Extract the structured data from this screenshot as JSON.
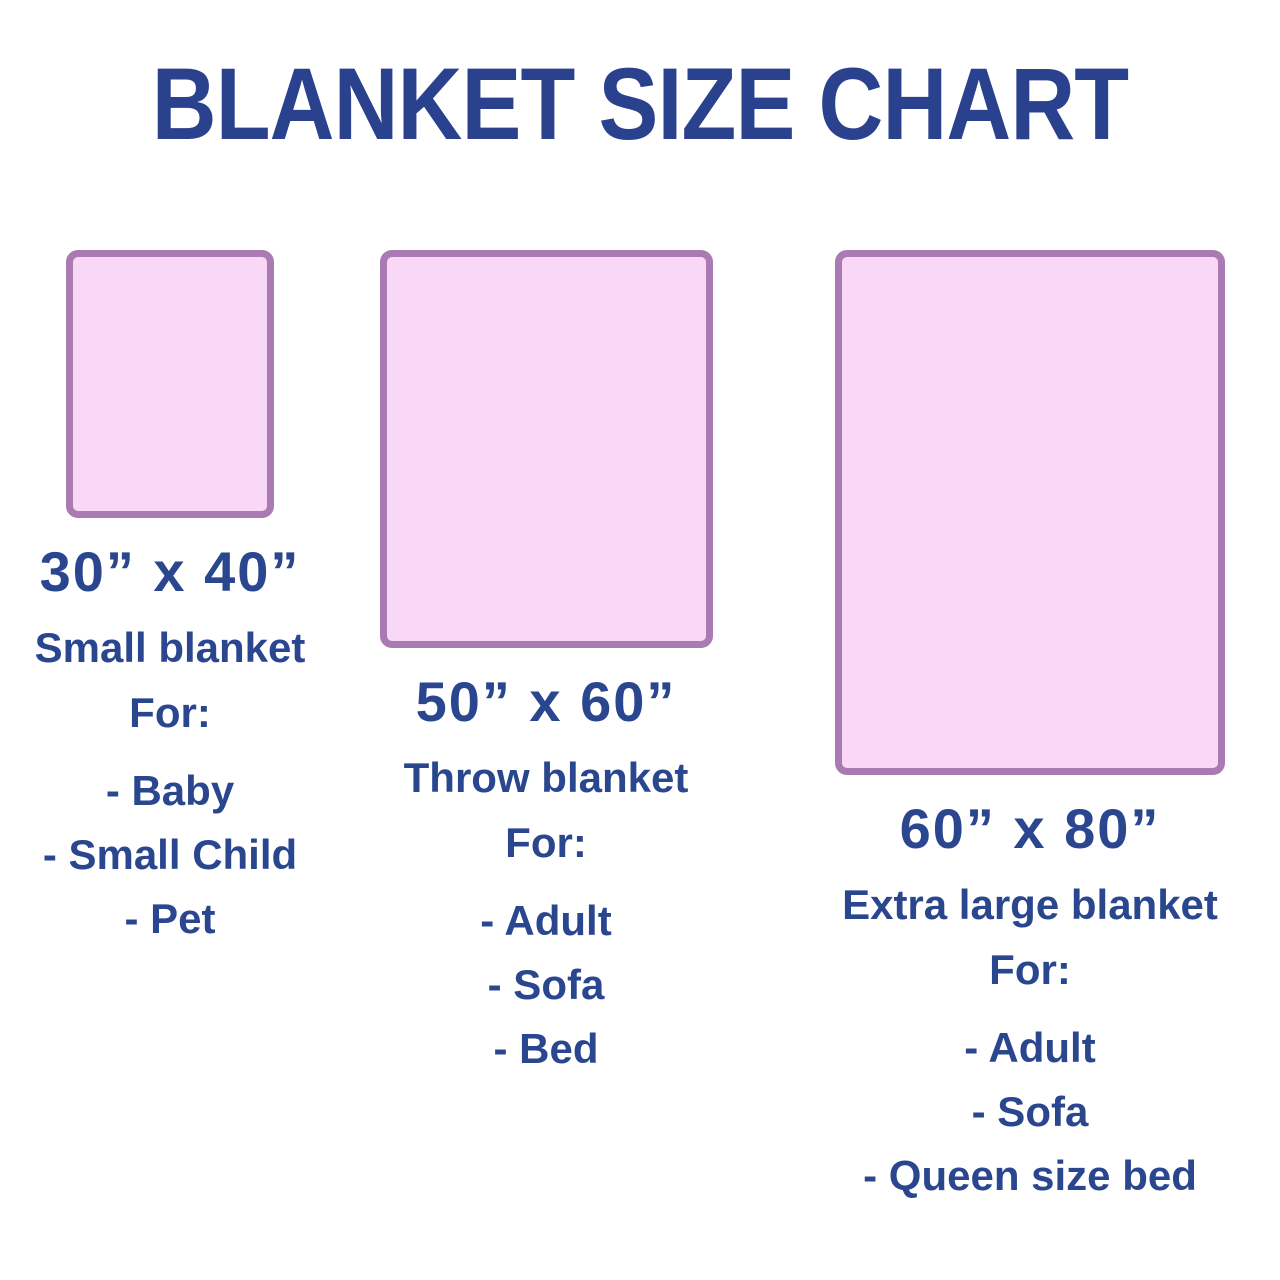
{
  "title": "BLANKET SIZE CHART",
  "colors": {
    "text_navy": "#2a468f",
    "blanket_fill": "#f8d8f6",
    "blanket_border": "#a97bb2",
    "background": "#ffffff"
  },
  "blankets": [
    {
      "size": "30” x 40”",
      "name": "Small blanket",
      "for_label": "For:",
      "uses": [
        "- Baby",
        "- Small Child",
        "- Pet"
      ],
      "width_inches": 30,
      "height_inches": 40
    },
    {
      "size": "50” x 60”",
      "name": "Throw blanket",
      "for_label": "For:",
      "uses": [
        "- Adult",
        "- Sofa",
        "- Bed"
      ],
      "width_inches": 50,
      "height_inches": 60
    },
    {
      "size": "60” x 80”",
      "name": "Extra large blanket",
      "for_label": "For:",
      "uses": [
        "- Adult",
        "- Sofa",
        "- Queen size bed"
      ],
      "width_inches": 60,
      "height_inches": 80
    }
  ]
}
